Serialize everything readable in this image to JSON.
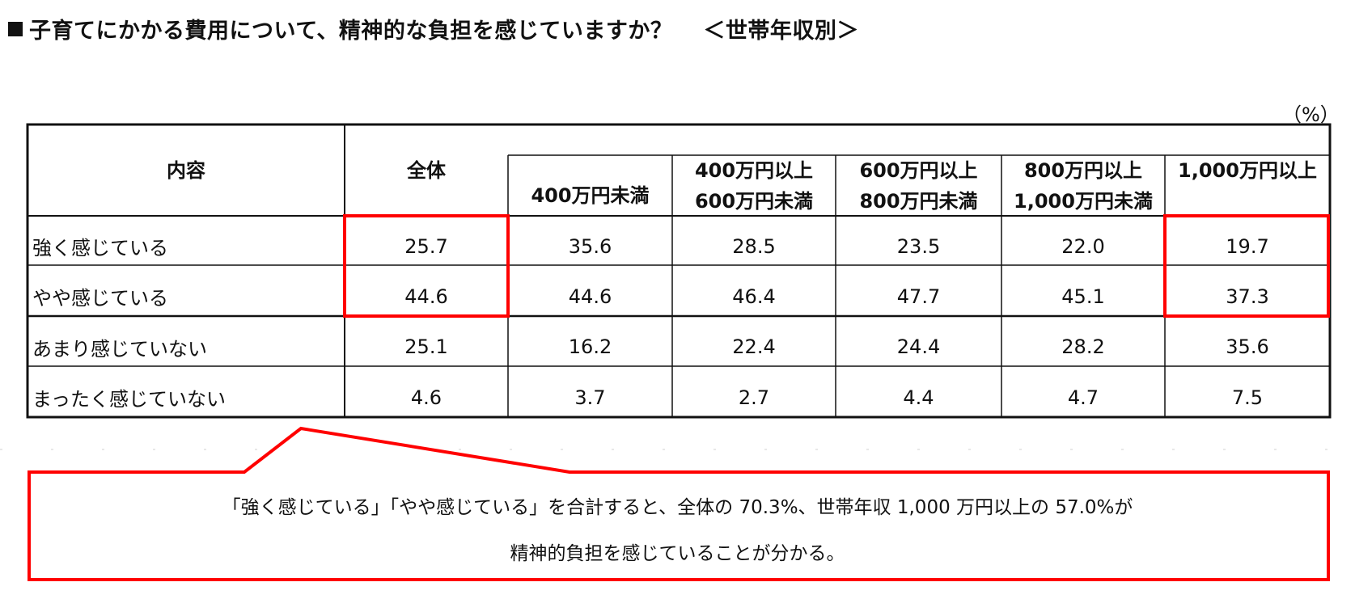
{
  "title": "子育てにかかる費用について、精神的な負担を感じていますか？",
  "subtitle": "＜世帯年収別＞",
  "unit": "（%）",
  "chart_data": {
    "type": "table",
    "columns": [
      {
        "label": "内容"
      },
      {
        "label": "全体"
      },
      {
        "label": "400万円未満"
      },
      {
        "label_line1": "400万円以上",
        "label_line2": "600万円未満"
      },
      {
        "label_line1": "600万円以上",
        "label_line2": "800万円未満"
      },
      {
        "label_line1": "800万円以上",
        "label_line2": "1,000万円未満"
      },
      {
        "label": "1,000万円以上"
      }
    ],
    "rows": [
      {
        "label": "強く感じている",
        "values": [
          "25.7",
          "35.6",
          "28.5",
          "23.5",
          "22.0",
          "19.7"
        ]
      },
      {
        "label": "やや感じている",
        "values": [
          "44.6",
          "44.6",
          "46.4",
          "47.7",
          "45.1",
          "37.3"
        ]
      },
      {
        "label": "あまり感じていない",
        "values": [
          "25.1",
          "16.2",
          "22.4",
          "24.4",
          "28.2",
          "35.6"
        ]
      },
      {
        "label": "まったく感じていない",
        "values": [
          "4.6",
          "3.7",
          "2.7",
          "4.4",
          "4.7",
          "7.5"
        ]
      }
    ],
    "highlight_color": "#ff0000"
  },
  "callout": {
    "line1": "「強く感じている」「やや感じている」を合計すると、全体の 70.3%、世帯年収 1,000 万円以上の 57.0%が",
    "line2": "精神的負担を感じていることが分かる。"
  }
}
